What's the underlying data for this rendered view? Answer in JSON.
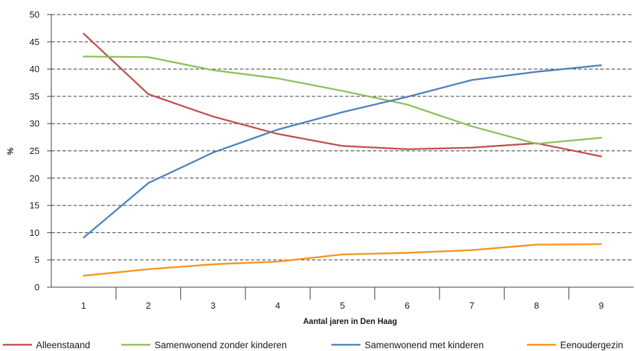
{
  "chart_data": {
    "type": "line",
    "title": "",
    "xlabel": "Aantal jaren in Den Haag",
    "ylabel": "%",
    "categories": [
      "1",
      "2",
      "3",
      "4",
      "5",
      "6",
      "7",
      "8",
      "9"
    ],
    "ylim": [
      0,
      50
    ],
    "yticks": [
      0,
      5,
      10,
      15,
      20,
      25,
      30,
      35,
      40,
      45,
      50
    ],
    "grid": "horizontal dashed",
    "legend_position": "bottom",
    "series": [
      {
        "name": "Alleenstaand",
        "color": "#c0504d",
        "values": [
          46.5,
          35.4,
          31.3,
          28.1,
          25.9,
          25.3,
          25.6,
          26.4,
          24.0
        ]
      },
      {
        "name": "Samenwonend zonder kinderen",
        "color": "#8dc05a",
        "values": [
          42.3,
          42.2,
          39.8,
          38.3,
          36.0,
          33.5,
          29.5,
          26.3,
          27.4
        ]
      },
      {
        "name": "Samenwonend met kinderen",
        "color": "#4f81bd",
        "values": [
          9.1,
          19.1,
          24.7,
          28.9,
          32.1,
          34.9,
          38.0,
          39.5,
          40.7
        ]
      },
      {
        "name": "Eenoudergezin",
        "color": "#f7931e",
        "values": [
          2.1,
          3.3,
          4.2,
          4.7,
          6.0,
          6.3,
          6.8,
          7.8,
          7.9
        ]
      }
    ]
  }
}
